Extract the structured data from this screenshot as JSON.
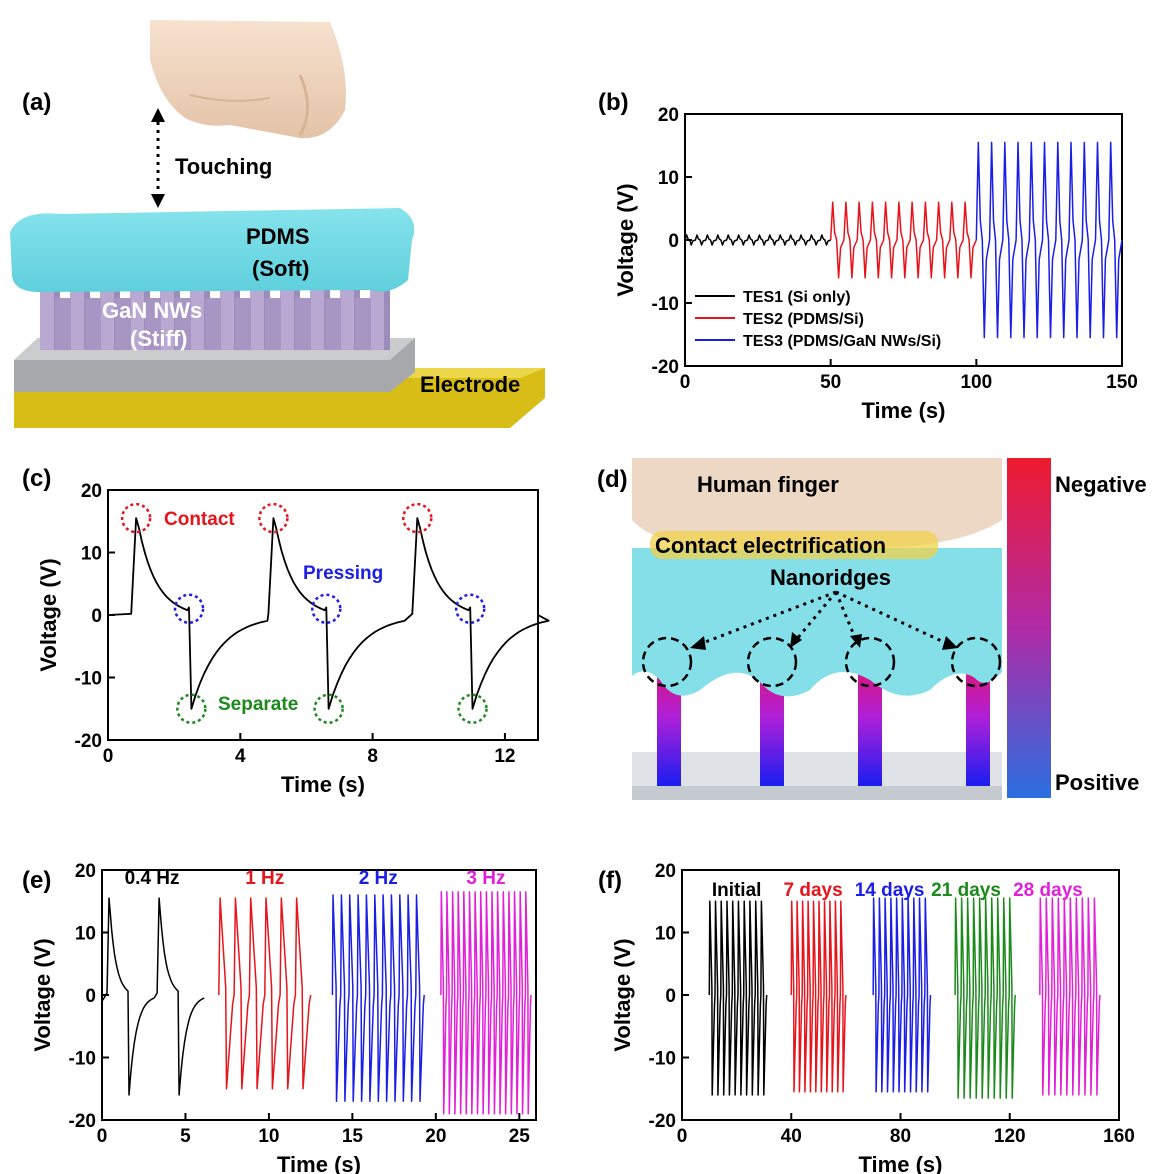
{
  "panel_labels": {
    "a": "(a)",
    "b": "(b)",
    "c": "(c)",
    "d": "(d)",
    "e": "(e)",
    "f": "(f)"
  },
  "schematic_a": {
    "touching": "Touching",
    "pdms": "PDMS",
    "pdms_sub": "(Soft)",
    "gan": "GaN NWs",
    "gan_sub": "(Stiff)",
    "electrode": "Electrode"
  },
  "schematic_d": {
    "finger": "Human finger",
    "contact": "Contact electrification",
    "nanoridges": "Nanoridges",
    "negative": "Negative",
    "positive": "Positive"
  },
  "colors": {
    "black": "#000000",
    "red": "#e8141b",
    "blue": "#1b1ee6",
    "green": "#1b8a1b",
    "magenta": "#e21fd9",
    "pdms": "#7fdde6",
    "gold": "#e0c21a"
  },
  "chart_data": [
    {
      "id": "b",
      "type": "line",
      "xlabel": "Time (s)",
      "ylabel": "Voltage (V)",
      "xlim": [
        0,
        150
      ],
      "ylim": [
        -20,
        20
      ],
      "xticks": [
        "0",
        "50",
        "100",
        "150"
      ],
      "yticks": [
        "-20",
        "-10",
        "0",
        "10",
        "20"
      ],
      "legend_position": "bottom-left",
      "series": [
        {
          "name": "TES1 (Si only)",
          "color": "#000000",
          "x_range": [
            0,
            50
          ],
          "peaks_per_window": 14,
          "pos_peak": 0.8,
          "neg_peak": -0.8
        },
        {
          "name": "TES2 (PDMS/Si)",
          "color": "#e8141b",
          "x_range": [
            50,
            100
          ],
          "peaks_per_window": 11,
          "pos_peak": 6,
          "neg_peak": -6
        },
        {
          "name": "TES3 (PDMS/GaN NWs/Si)",
          "color": "#1b1ee6",
          "x_range": [
            100,
            150
          ],
          "peaks_per_window": 11,
          "pos_peak": 15.5,
          "neg_peak": -15.5
        }
      ]
    },
    {
      "id": "c",
      "type": "line",
      "xlabel": "Time (s)",
      "ylabel": "Voltage (V)",
      "xlim": [
        0,
        13
      ],
      "ylim": [
        -20,
        20
      ],
      "xticks": [
        "0",
        "4",
        "8",
        "12"
      ],
      "yticks": [
        "-20",
        "-10",
        "0",
        "10",
        "20"
      ],
      "cycle_starts": [
        0.7,
        4.85,
        9.2
      ],
      "pos_peak": 15.5,
      "neg_peak": -15,
      "annotations": [
        {
          "text": "Contact",
          "color": "#e8141b"
        },
        {
          "text": "Pressing",
          "color": "#1b1ee6"
        },
        {
          "text": "Separate",
          "color": "#1b8a1b"
        }
      ]
    },
    {
      "id": "e",
      "type": "line",
      "xlabel": "Time (s)",
      "ylabel": "Voltage (V)",
      "xlim": [
        0,
        26
      ],
      "ylim": [
        -20,
        20
      ],
      "xticks": [
        "0",
        "5",
        "10",
        "15",
        "20",
        "25"
      ],
      "yticks": [
        "-20",
        "-10",
        "0",
        "10",
        "20"
      ],
      "series": [
        {
          "name": "0.4 Hz",
          "color": "#000000",
          "x_range": [
            0,
            6
          ],
          "cycles": 2,
          "pos_peak": 15.5,
          "neg_peak": -16
        },
        {
          "name": "1 Hz",
          "color": "#e8141b",
          "x_range": [
            7,
            12.5
          ],
          "cycles": 6,
          "pos_peak": 15.5,
          "neg_peak": -15
        },
        {
          "name": "2 Hz",
          "color": "#1b1ee6",
          "x_range": [
            13.8,
            19.3
          ],
          "cycles": 11,
          "pos_peak": 16,
          "neg_peak": -17
        },
        {
          "name": "3 Hz",
          "color": "#e21fd9",
          "x_range": [
            20.3,
            25.7
          ],
          "cycles": 16,
          "pos_peak": 16.5,
          "neg_peak": -19
        }
      ]
    },
    {
      "id": "f",
      "type": "line",
      "xlabel": "Time (s)",
      "ylabel": "Voltage (V)",
      "xlim": [
        0,
        160
      ],
      "ylim": [
        -20,
        20
      ],
      "xticks": [
        "0",
        "40",
        "80",
        "120",
        "160"
      ],
      "yticks": [
        "-20",
        "-10",
        "0",
        "10",
        "20"
      ],
      "series": [
        {
          "name": "Initial",
          "color": "#000000",
          "x_range": [
            10,
            31
          ],
          "cycles": 10,
          "pos_peak": 15,
          "neg_peak": -16
        },
        {
          "name": "7 days",
          "color": "#e8141b",
          "x_range": [
            40,
            60
          ],
          "cycles": 10,
          "pos_peak": 15,
          "neg_peak": -15.5
        },
        {
          "name": "14 days",
          "color": "#1b1ee6",
          "x_range": [
            70,
            91
          ],
          "cycles": 10,
          "pos_peak": 15.5,
          "neg_peak": -15.5
        },
        {
          "name": "21 days",
          "color": "#1b8a1b",
          "x_range": [
            100,
            122
          ],
          "cycles": 10,
          "pos_peak": 15.5,
          "neg_peak": -16.5
        },
        {
          "name": "28 days",
          "color": "#e21fd9",
          "x_range": [
            131,
            153
          ],
          "cycles": 10,
          "pos_peak": 15.5,
          "neg_peak": -16
        }
      ]
    }
  ]
}
